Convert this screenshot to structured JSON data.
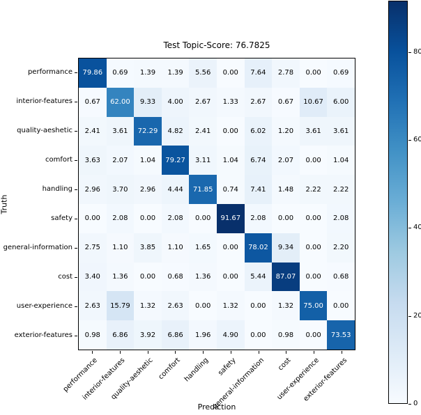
{
  "chart_data": {
    "type": "heatmap",
    "title": "Test Topic-Score: 76.7825",
    "xlabel": "Prediction",
    "ylabel": "Truth",
    "categories": [
      "performance",
      "interior-features",
      "quality-aeshetic",
      "comfort",
      "handling",
      "safety",
      "general-information",
      "cost",
      "user-experience",
      "exterior-features"
    ],
    "matrix": [
      [
        79.86,
        0.69,
        1.39,
        1.39,
        5.56,
        0.0,
        7.64,
        2.78,
        0.0,
        0.69
      ],
      [
        0.67,
        62.0,
        9.33,
        4.0,
        2.67,
        1.33,
        2.67,
        0.67,
        10.67,
        6.0
      ],
      [
        2.41,
        3.61,
        72.29,
        4.82,
        2.41,
        0.0,
        6.02,
        1.2,
        3.61,
        3.61
      ],
      [
        3.63,
        2.07,
        1.04,
        79.27,
        3.11,
        1.04,
        6.74,
        2.07,
        0.0,
        1.04
      ],
      [
        2.96,
        3.7,
        2.96,
        4.44,
        71.85,
        0.74,
        7.41,
        1.48,
        2.22,
        2.22
      ],
      [
        0.0,
        2.08,
        0.0,
        2.08,
        0.0,
        91.67,
        2.08,
        0.0,
        0.0,
        2.08
      ],
      [
        2.75,
        1.1,
        3.85,
        1.1,
        1.65,
        0.0,
        78.02,
        9.34,
        0.0,
        2.2
      ],
      [
        3.4,
        1.36,
        0.0,
        0.68,
        1.36,
        0.0,
        5.44,
        87.07,
        0.0,
        0.68
      ],
      [
        2.63,
        15.79,
        1.32,
        2.63,
        0.0,
        1.32,
        0.0,
        1.32,
        75.0,
        0.0
      ],
      [
        0.98,
        6.86,
        3.92,
        6.86,
        1.96,
        4.9,
        0.0,
        0.98,
        0.0,
        73.53
      ]
    ],
    "value_decimals": 2,
    "vmin": 0,
    "vmax": 91.67,
    "colormap": "Blues",
    "colormap_anchors": [
      {
        "t": 0.0,
        "color": "#f7fbff"
      },
      {
        "t": 0.125,
        "color": "#deebf7"
      },
      {
        "t": 0.25,
        "color": "#c6dbef"
      },
      {
        "t": 0.375,
        "color": "#9ecae1"
      },
      {
        "t": 0.5,
        "color": "#6baed6"
      },
      {
        "t": 0.625,
        "color": "#4292c6"
      },
      {
        "t": 0.75,
        "color": "#2171b5"
      },
      {
        "t": 0.875,
        "color": "#08519c"
      },
      {
        "t": 1.0,
        "color": "#08306b"
      }
    ],
    "cell_text_color_high": "#ffffff",
    "cell_text_color_low": "#000000",
    "colorbar": {
      "position": "right",
      "ticks": [
        0,
        20,
        40,
        60,
        80
      ]
    },
    "grid": false,
    "legend": "none"
  }
}
